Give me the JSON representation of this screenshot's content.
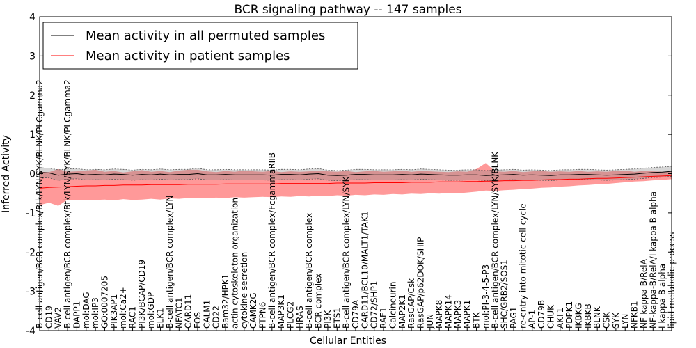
{
  "chart_data": {
    "type": "line",
    "title": "BCR signaling pathway -- 147 samples",
    "xlabel": "Cellular Entities",
    "ylabel": "Inferred Activity",
    "ylim": [
      -4,
      4
    ],
    "yticks": [
      -4,
      -3,
      -2,
      -1,
      0,
      1,
      2,
      3,
      4
    ],
    "grid": false,
    "legend_position": "top-left",
    "categories": [
      "B-cell antigen/BCR complex/Btk/LYN/SYK/BLNK/PLCgamma2",
      "CD19",
      "VAV2",
      "B-cell antigen/BCR complex/Btk/LYN/SYK/BLNK/PLCgamma2",
      "DAPP1",
      "mol:DAG",
      "mol:IP3",
      "GO:0007205",
      "PIK3AP1",
      "mol:Ca2+",
      "RAC1",
      "PI3K/BCAP/CD19",
      "mol:GDP",
      "ELK1",
      "B-cell antigen/BCR complex/LYN",
      "NFATC1",
      "CARD11",
      "FOS",
      "CALM1",
      "CD22",
      "Bam32/HPK1",
      "actin cytoskeleton organization",
      "cytokine secretion",
      "CAMK2G",
      "PTPN6",
      "B-cell antigen/BCR complex/FcgammaRIIB",
      "MAP3K1",
      "PLCG2",
      "HRAS",
      "B-cell antigen/BCR complex",
      "BCR complex",
      "PI3K",
      "ETS1",
      "B-cell antigen/BCR complex/LYN/SYK",
      "CD79A",
      "CARD11/BCL10/MALT1/TAK1",
      "CD72/SHP1",
      "RAF1",
      "Calcineurin",
      "MAP2K1",
      "RasGAP/Csk",
      "RasGAP/p62DOK/SHIP",
      "JUN",
      "MAPK8",
      "MAPK14",
      "MAPK3",
      "MAPK1",
      "BTK",
      "mol:PI-3-4-5-P3",
      "B-cell antigen/BCR complex/LYN/SYK/BLNK",
      "SHC/GRB2/SOS1",
      "PAG1",
      "re-entry into mitotic cell cycle",
      "AP-1",
      "CD79B",
      "CHUK",
      "AKT1",
      "PDPK1",
      "IKBKG",
      "IKBKB",
      "BLNK",
      "CSK",
      "SYK",
      "LYN",
      "NFKB1",
      "NF-kappa-B/RelA",
      "NF-kappa-B/RelA/I kappa B alpha",
      "I kappa B alpha",
      "lipid metabolic process"
    ],
    "series": [
      {
        "name": "Mean activity in all permuted samples",
        "color": "#000000",
        "values": [
          0.03,
          0.02,
          -0.04,
          -0.01,
          0.0,
          -0.03,
          -0.02,
          -0.03,
          -0.01,
          -0.02,
          -0.04,
          -0.02,
          -0.03,
          -0.01,
          -0.03,
          -0.02,
          -0.02,
          0.0,
          -0.03,
          -0.03,
          -0.02,
          -0.03,
          -0.03,
          -0.03,
          -0.03,
          -0.04,
          -0.02,
          -0.02,
          -0.03,
          -0.01,
          0.0,
          -0.04,
          -0.05,
          -0.04,
          -0.02,
          -0.02,
          -0.03,
          -0.03,
          -0.03,
          -0.02,
          -0.03,
          -0.01,
          -0.02,
          -0.03,
          -0.04,
          -0.04,
          -0.03,
          -0.03,
          -0.05,
          -0.04,
          -0.03,
          -0.02,
          -0.04,
          -0.03,
          -0.04,
          -0.05,
          -0.03,
          -0.03,
          -0.02,
          -0.02,
          -0.03,
          -0.04,
          -0.03,
          -0.02,
          -0.01,
          0.01,
          0.03,
          0.04,
          0.06
        ],
        "band_upper": [
          0.15,
          0.14,
          0.1,
          0.12,
          0.13,
          0.1,
          0.11,
          0.1,
          0.12,
          0.11,
          0.09,
          0.11,
          0.1,
          0.12,
          0.1,
          0.11,
          0.11,
          0.14,
          0.1,
          0.1,
          0.11,
          0.1,
          0.1,
          0.1,
          0.1,
          0.09,
          0.11,
          0.11,
          0.1,
          0.12,
          0.13,
          0.09,
          0.08,
          0.09,
          0.11,
          0.11,
          0.1,
          0.1,
          0.1,
          0.11,
          0.1,
          0.12,
          0.11,
          0.1,
          0.09,
          0.09,
          0.1,
          0.1,
          0.08,
          0.09,
          0.1,
          0.11,
          0.09,
          0.1,
          0.09,
          0.08,
          0.1,
          0.1,
          0.11,
          0.11,
          0.1,
          0.09,
          0.1,
          0.11,
          0.12,
          0.14,
          0.16,
          0.17,
          0.19
        ],
        "band_lower": [
          -0.1,
          -0.11,
          -0.17,
          -0.14,
          -0.13,
          -0.16,
          -0.15,
          -0.16,
          -0.14,
          -0.15,
          -0.17,
          -0.15,
          -0.16,
          -0.14,
          -0.16,
          -0.15,
          -0.15,
          -0.13,
          -0.16,
          -0.16,
          -0.15,
          -0.16,
          -0.16,
          -0.16,
          -0.16,
          -0.17,
          -0.15,
          -0.15,
          -0.16,
          -0.14,
          -0.13,
          -0.17,
          -0.18,
          -0.17,
          -0.15,
          -0.15,
          -0.16,
          -0.16,
          -0.16,
          -0.15,
          -0.16,
          -0.14,
          -0.15,
          -0.16,
          -0.17,
          -0.17,
          -0.16,
          -0.16,
          -0.18,
          -0.17,
          -0.16,
          -0.15,
          -0.17,
          -0.16,
          -0.17,
          -0.18,
          -0.16,
          -0.16,
          -0.15,
          -0.15,
          -0.16,
          -0.17,
          -0.16,
          -0.15,
          -0.14,
          -0.12,
          -0.1,
          -0.09,
          -0.07
        ]
      },
      {
        "name": "Mean activity in patient samples",
        "color": "#ff0000",
        "band_color": "#ff9999",
        "values": [
          -0.37,
          -0.35,
          -0.34,
          -0.33,
          -0.32,
          -0.31,
          -0.31,
          -0.3,
          -0.3,
          -0.29,
          -0.29,
          -0.29,
          -0.28,
          -0.28,
          -0.28,
          -0.28,
          -0.27,
          -0.27,
          -0.27,
          -0.27,
          -0.26,
          -0.26,
          -0.26,
          -0.26,
          -0.26,
          -0.26,
          -0.25,
          -0.25,
          -0.25,
          -0.25,
          -0.25,
          -0.25,
          -0.24,
          -0.24,
          -0.24,
          -0.24,
          -0.23,
          -0.23,
          -0.23,
          -0.23,
          -0.22,
          -0.22,
          -0.22,
          -0.21,
          -0.21,
          -0.21,
          -0.2,
          -0.2,
          -0.19,
          -0.19,
          -0.18,
          -0.18,
          -0.17,
          -0.17,
          -0.16,
          -0.15,
          -0.15,
          -0.14,
          -0.14,
          -0.13,
          -0.12,
          -0.12,
          -0.11,
          -0.1,
          -0.09,
          -0.08,
          -0.07,
          -0.06,
          -0.05
        ],
        "band_upper": [
          0.05,
          0.04,
          0.12,
          0.05,
          0.06,
          0.08,
          0.1,
          0.05,
          0.07,
          0.03,
          0.06,
          0.09,
          0.05,
          0.07,
          0.04,
          0.08,
          0.1,
          0.1,
          0.06,
          0.04,
          0.07,
          0.05,
          0.08,
          0.06,
          0.05,
          0.07,
          0.04,
          0.06,
          0.05,
          0.06,
          0.08,
          0.06,
          0.05,
          0.07,
          0.04,
          0.06,
          0.07,
          0.05,
          0.06,
          0.08,
          0.05,
          0.07,
          0.06,
          0.05,
          0.04,
          0.06,
          0.05,
          0.12,
          0.27,
          0.06,
          0.05,
          0.07,
          0.04,
          0.06,
          0.07,
          0.05,
          0.06,
          0.05,
          0.07,
          0.05,
          0.06,
          0.05,
          0.07,
          0.08,
          0.05,
          0.07,
          0.06,
          0.05,
          0.04
        ],
        "band_lower": [
          -0.8,
          -0.74,
          -0.82,
          -0.66,
          -0.68,
          -0.68,
          -0.67,
          -0.66,
          -0.68,
          -0.65,
          -0.67,
          -0.66,
          -0.64,
          -0.66,
          -0.63,
          -0.64,
          -0.62,
          -0.63,
          -0.62,
          -0.61,
          -0.62,
          -0.6,
          -0.61,
          -0.6,
          -0.59,
          -0.6,
          -0.58,
          -0.59,
          -0.57,
          -0.58,
          -0.56,
          -0.57,
          -0.55,
          -0.56,
          -0.54,
          -0.55,
          -0.53,
          -0.54,
          -0.52,
          -0.53,
          -0.51,
          -0.52,
          -0.5,
          -0.51,
          -0.49,
          -0.5,
          -0.48,
          -0.46,
          -0.43,
          -0.44,
          -0.42,
          -0.41,
          -0.39,
          -0.38,
          -0.36,
          -0.35,
          -0.33,
          -0.32,
          -0.3,
          -0.29,
          -0.27,
          -0.26,
          -0.24,
          -0.22,
          -0.2,
          -0.19,
          -0.17,
          -0.16,
          -0.14
        ]
      }
    ]
  }
}
